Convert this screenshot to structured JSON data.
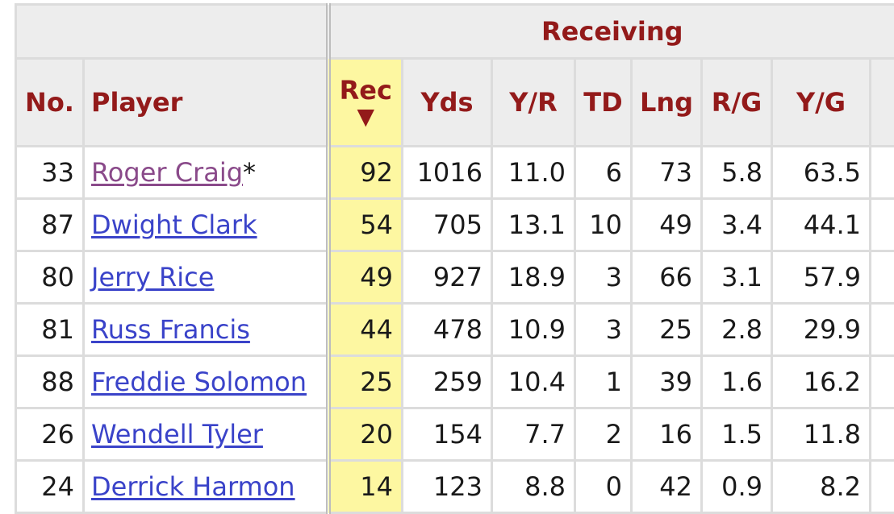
{
  "table": {
    "group_header": "Receiving",
    "columns": {
      "no": "No.",
      "player": "Player",
      "rec": "Rec",
      "rec_sort_arrow": "▼",
      "yds": "Yds",
      "yr": "Y/R",
      "td": "TD",
      "lng": "Lng",
      "rg": "R/G",
      "yg": "Y/G"
    },
    "rows": [
      {
        "no": "33",
        "player": "Roger Craig",
        "suffix": "*",
        "rec": "92",
        "yds": "1016",
        "yr": "11.0",
        "td": "6",
        "lng": "73",
        "rg": "5.8",
        "yg": "63.5"
      },
      {
        "no": "87",
        "player": "Dwight Clark",
        "suffix": "",
        "rec": "54",
        "yds": "705",
        "yr": "13.1",
        "td": "10",
        "lng": "49",
        "rg": "3.4",
        "yg": "44.1"
      },
      {
        "no": "80",
        "player": "Jerry Rice",
        "suffix": "",
        "rec": "49",
        "yds": "927",
        "yr": "18.9",
        "td": "3",
        "lng": "66",
        "rg": "3.1",
        "yg": "57.9"
      },
      {
        "no": "81",
        "player": "Russ Francis",
        "suffix": "",
        "rec": "44",
        "yds": "478",
        "yr": "10.9",
        "td": "3",
        "lng": "25",
        "rg": "2.8",
        "yg": "29.9"
      },
      {
        "no": "88",
        "player": "Freddie Solomon",
        "suffix": "",
        "rec": "25",
        "yds": "259",
        "yr": "10.4",
        "td": "1",
        "lng": "39",
        "rg": "1.6",
        "yg": "16.2"
      },
      {
        "no": "26",
        "player": "Wendell Tyler",
        "suffix": "",
        "rec": "20",
        "yds": "154",
        "yr": "7.7",
        "td": "2",
        "lng": "16",
        "rg": "1.5",
        "yg": "11.8"
      },
      {
        "no": "24",
        "player": "Derrick Harmon",
        "suffix": "",
        "rec": "14",
        "yds": "123",
        "yr": "8.8",
        "td": "0",
        "lng": "42",
        "rg": "0.9",
        "yg": "8.2"
      }
    ]
  },
  "colors": {
    "header_text": "#931a1a",
    "header_bg": "#ededed",
    "sorted_bg": "#fdf7a1",
    "link": "#3a43c9",
    "visited_link": "#8a4a8a"
  }
}
